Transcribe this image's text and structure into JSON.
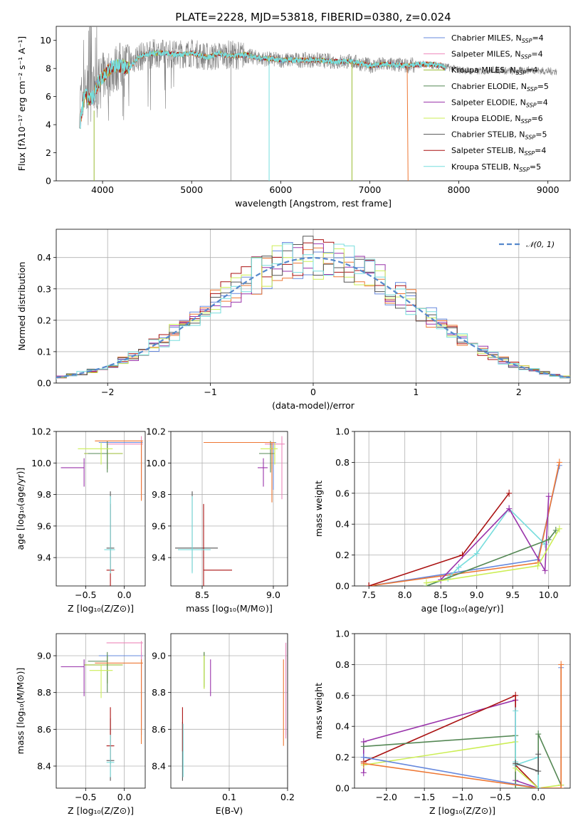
{
  "title": "PLATE=2228, MJD=53818, FIBERID=0380, z=0.024",
  "colors": {
    "Chabrier MILES": "#6688dd",
    "Salpeter MILES": "#ee88bb",
    "Kroupa MILES": "#99bb33",
    "Chabrier ELODIE": "#558855",
    "Salpeter ELODIE": "#9933aa",
    "Kroupa ELODIE": "#ccee55",
    "Chabrier STELIB": "#555555",
    "Salpeter STELIB": "#aa1111",
    "Kroupa STELIB": "#77dddd",
    "orange": "#ee7733",
    "gray_spectrum": "#808080"
  },
  "chart_data": [
    {
      "id": "spectrum",
      "type": "line",
      "xlabel": "wavelength [Angstrom, rest frame]",
      "ylabel": "Flux [fλ10⁻¹⁷ erg cm⁻² s⁻¹ A⁻¹]",
      "xlim": [
        3480,
        9250
      ],
      "ylim": [
        0,
        11
      ],
      "xticks": [
        "4000",
        "5000",
        "6000",
        "7000",
        "8000",
        "9000"
      ],
      "yticks": [
        "0",
        "2",
        "4",
        "6",
        "8",
        "10"
      ],
      "legend_position": "upper right",
      "legend": [
        {
          "name": "Chabrier MILES",
          "nssp": "4"
        },
        {
          "name": "Salpeter MILES",
          "nssp": "4"
        },
        {
          "name": "Kroupa MILES",
          "nssp": "4"
        },
        {
          "name": "Chabrier ELODIE",
          "nssp": "5"
        },
        {
          "name": "Salpeter ELODIE",
          "nssp": "4"
        },
        {
          "name": "Kroupa ELODIE",
          "nssp": "6"
        },
        {
          "name": "Chabrier STELIB",
          "nssp": "5"
        },
        {
          "name": "Salpeter STELIB",
          "nssp": "4"
        },
        {
          "name": "Kroupa STELIB",
          "nssp": "5"
        }
      ],
      "continuum": {
        "x": [
          3750,
          3800,
          3850,
          3900,
          3950,
          4000,
          4100,
          4200,
          4300,
          4400,
          4500,
          4600,
          4700,
          4800,
          4900,
          5000,
          5100,
          5200,
          5300,
          5400,
          5500,
          5600,
          5700,
          5800,
          5900,
          6000,
          6200,
          6400,
          6600,
          6800,
          7000,
          7200,
          7400,
          7600,
          7700,
          7800,
          7850
        ],
        "y": [
          4.2,
          6.2,
          5.8,
          6.0,
          7.0,
          7.4,
          8.1,
          8.2,
          8.0,
          8.8,
          9.0,
          9.1,
          9.1,
          9.0,
          9.0,
          9.1,
          8.9,
          8.8,
          9.1,
          8.9,
          8.9,
          9.0,
          8.8,
          8.7,
          8.7,
          8.6,
          8.6,
          8.6,
          8.5,
          8.5,
          8.2,
          8.3,
          8.2,
          8.3,
          8.3,
          8.2,
          8.0
        ]
      },
      "observed_spectrum": {
        "x": [
          3740,
          3800,
          3900,
          4000,
          4200,
          4400,
          4600,
          4800,
          5000,
          5200,
          5400,
          5600,
          5800,
          6000,
          6200,
          6400,
          6600,
          6800,
          7000,
          7200,
          7400,
          7600,
          7800,
          8000,
          8200,
          8400,
          8600,
          8800,
          9000,
          9100
        ],
        "y": [
          5.5,
          6.5,
          6.4,
          7.4,
          8.2,
          8.8,
          9.1,
          9.0,
          9.1,
          8.8,
          9.0,
          8.9,
          8.7,
          8.6,
          8.6,
          8.6,
          8.5,
          8.5,
          8.2,
          8.3,
          8.2,
          8.3,
          8.2,
          7.9,
          7.8,
          7.9,
          7.8,
          7.9,
          7.8,
          7.8
        ]
      }
    },
    {
      "id": "residuals",
      "type": "line",
      "xlabel": "(data-model)/error",
      "ylabel": "Normed distribution",
      "xlim": [
        -2.5,
        2.5
      ],
      "ylim": [
        0,
        0.49
      ],
      "xticks": [
        "−2",
        "−1",
        "0",
        "1",
        "2"
      ],
      "yticks": [
        "0.0",
        "0.1",
        "0.2",
        "0.3",
        "0.4"
      ],
      "legend": "𝒩(0, 1)",
      "normal_mean": 0,
      "normal_sigma": 1,
      "bin_width": 0.1
    },
    {
      "id": "age_vs_Z",
      "type": "scatter",
      "xlabel": "Z [log₁₀(Z/Z⊙)]",
      "ylabel": "age  [log₁₀(age/yr)]",
      "xlim": [
        -0.88,
        0.27
      ],
      "ylim": [
        9.22,
        10.2
      ],
      "xticks": [
        "−0.5",
        "0.0"
      ],
      "yticks": [
        "9.4",
        "9.6",
        "9.8",
        "10.0",
        "10.2"
      ],
      "points": [
        {
          "model": "Chabrier MILES",
          "x": 0.22,
          "y": 10.13,
          "xerr": [
            0.55,
            0.02
          ],
          "yerr": [
            0.3,
            0.0
          ],
          "c": "#6688dd"
        },
        {
          "model": "Salpeter MILES",
          "x": 0.22,
          "y": 10.12,
          "xerr": [
            0.45,
            0.02
          ],
          "yerr": [
            0.35,
            0.05
          ],
          "c": "#ee88bb"
        },
        {
          "model": "Kroupa MILES",
          "x": -0.22,
          "y": 10.06,
          "xerr": [
            0.3,
            0.2
          ],
          "yerr": [
            0.1,
            0.06
          ],
          "c": "#99bb33"
        },
        {
          "model": "Chabrier ELODIE",
          "x": -0.22,
          "y": 10.06,
          "xerr": [
            0.25,
            0.0
          ],
          "yerr": [
            0.12,
            0.08
          ],
          "c": "#558855"
        },
        {
          "model": "Salpeter ELODIE",
          "x": -0.52,
          "y": 9.97,
          "xerr": [
            0.3,
            0.0
          ],
          "yerr": [
            0.12,
            0.06
          ],
          "c": "#9933aa"
        },
        {
          "model": "Kroupa ELODIE",
          "x": -0.3,
          "y": 10.09,
          "xerr": [
            0.3,
            0.15
          ],
          "yerr": [
            0.1,
            0.04
          ],
          "c": "#ccee55"
        },
        {
          "model": "Chabrier STELIB",
          "x": -0.18,
          "y": 9.46,
          "xerr": [
            0.05,
            0.05
          ],
          "yerr": [
            0.15,
            0.36
          ],
          "c": "#555555"
        },
        {
          "model": "Salpeter STELIB",
          "x": -0.18,
          "y": 9.32,
          "xerr": [
            0.05,
            0.05
          ],
          "yerr": [
            0.1,
            0.42
          ],
          "c": "#aa1111"
        },
        {
          "model": "Kroupa STELIB",
          "x": -0.18,
          "y": 9.45,
          "xerr": [
            0.08,
            0.06
          ],
          "yerr": [
            0.15,
            0.34
          ],
          "c": "#77dddd"
        },
        {
          "model": "orange",
          "x": 0.22,
          "y": 10.14,
          "xerr": [
            0.6,
            0.02
          ],
          "yerr": [
            0.38,
            0.0
          ],
          "c": "#ee7733"
        }
      ]
    },
    {
      "id": "age_vs_mass",
      "type": "scatter",
      "xlabel": "mass [log₁₀(M/M⊙)]",
      "ylabel": "",
      "xlim": [
        8.28,
        9.1
      ],
      "ylim": [
        9.22,
        10.2
      ],
      "xticks": [
        "8.5",
        "9.0"
      ],
      "yticks": [
        "9.4",
        "9.6",
        "9.8",
        "10.0",
        "10.2"
      ],
      "points": [
        {
          "x": 9.0,
          "y": 10.13,
          "xerr": [
            0.3,
            0.02
          ],
          "yerr": [
            0.3,
            0.0
          ],
          "c": "#6688dd"
        },
        {
          "x": 9.06,
          "y": 10.12,
          "xerr": [
            0.12,
            0.02
          ],
          "yerr": [
            0.35,
            0.05
          ],
          "c": "#ee88bb"
        },
        {
          "x": 8.99,
          "y": 10.06,
          "xerr": [
            0.08,
            0.02
          ],
          "yerr": [
            0.1,
            0.06
          ],
          "c": "#99bb33"
        },
        {
          "x": 8.98,
          "y": 10.06,
          "xerr": [
            0.08,
            0.02
          ],
          "yerr": [
            0.12,
            0.08
          ],
          "c": "#558855"
        },
        {
          "x": 8.93,
          "y": 9.97,
          "xerr": [
            0.04,
            0.03
          ],
          "yerr": [
            0.12,
            0.06
          ],
          "c": "#9933aa"
        },
        {
          "x": 9.01,
          "y": 10.09,
          "xerr": [
            0.1,
            0.02
          ],
          "yerr": [
            0.1,
            0.04
          ],
          "c": "#ccee55"
        },
        {
          "x": 8.43,
          "y": 9.46,
          "xerr": [
            0.12,
            0.18
          ],
          "yerr": [
            0.15,
            0.36
          ],
          "c": "#555555"
        },
        {
          "x": 8.51,
          "y": 9.32,
          "xerr": [
            0.0,
            0.2
          ],
          "yerr": [
            0.1,
            0.42
          ],
          "c": "#aa1111"
        },
        {
          "x": 8.43,
          "y": 9.45,
          "xerr": [
            0.1,
            0.13
          ],
          "yerr": [
            0.15,
            0.34
          ],
          "c": "#77dddd"
        },
        {
          "x": 8.99,
          "y": 10.13,
          "xerr": [
            0.48,
            0.02
          ],
          "yerr": [
            0.38,
            0.0
          ],
          "c": "#ee7733"
        }
      ]
    },
    {
      "id": "massweight_vs_age",
      "type": "line",
      "xlabel": "age  [log₁₀(age/yr)]",
      "ylabel": "mass weight",
      "xlim": [
        7.3,
        10.3
      ],
      "ylim": [
        0,
        1.0
      ],
      "xticks": [
        "7.5",
        "8.0",
        "8.5",
        "9.0",
        "9.5",
        "10.0"
      ],
      "yticks": [
        "0.0",
        "0.2",
        "0.4",
        "0.6",
        "0.8",
        "1.0"
      ],
      "series": [
        {
          "c": "#6688dd",
          "x": [
            7.5,
            9.85,
            10.15
          ],
          "y": [
            0.0,
            0.17,
            0.78
          ]
        },
        {
          "c": "#ee7733",
          "x": [
            7.5,
            9.85,
            10.15
          ],
          "y": [
            0.0,
            0.15,
            0.8
          ]
        },
        {
          "c": "#aa1111",
          "x": [
            7.5,
            8.8,
            9.45
          ],
          "y": [
            0.0,
            0.2,
            0.6
          ]
        },
        {
          "c": "#77dddd",
          "x": [
            8.3,
            8.6,
            8.75,
            9.0,
            9.45,
            9.95
          ],
          "y": [
            0.0,
            0.05,
            0.12,
            0.21,
            0.5,
            0.27
          ]
        },
        {
          "c": "#9933aa",
          "x": [
            8.5,
            9.45,
            9.95,
            10.0
          ],
          "y": [
            0.04,
            0.5,
            0.1,
            0.58
          ]
        },
        {
          "c": "#558855",
          "x": [
            8.3,
            10.0,
            10.1
          ],
          "y": [
            0.0,
            0.3,
            0.36
          ]
        },
        {
          "c": "#ccee55",
          "x": [
            8.3,
            9.85,
            10.15
          ],
          "y": [
            0.02,
            0.13,
            0.37
          ]
        }
      ]
    },
    {
      "id": "mass_vs_Z",
      "type": "scatter",
      "xlabel": "Z [log₁₀(Z/Z⊙)]",
      "ylabel": "mass [log₁₀(M/M⊙)]",
      "xlim": [
        -0.88,
        0.27
      ],
      "ylim": [
        8.28,
        9.12
      ],
      "xticks": [
        "−0.5",
        "0.0"
      ],
      "yticks": [
        "8.4",
        "8.6",
        "8.8",
        "9.0"
      ],
      "points": [
        {
          "x": 0.22,
          "y": 9.0,
          "xerr": [
            0.55,
            0.02
          ],
          "yerr": [
            0.43,
            0.02
          ],
          "c": "#6688dd"
        },
        {
          "x": 0.22,
          "y": 9.07,
          "xerr": [
            0.45,
            0.02
          ],
          "yerr": [
            0.45,
            0.01
          ],
          "c": "#ee88bb"
        },
        {
          "x": -0.22,
          "y": 8.95,
          "xerr": [
            0.3,
            0.2
          ],
          "yerr": [
            0.1,
            0.05
          ],
          "c": "#99bb33"
        },
        {
          "x": -0.22,
          "y": 8.97,
          "xerr": [
            0.25,
            0.0
          ],
          "yerr": [
            0.17,
            0.05
          ],
          "c": "#558855"
        },
        {
          "x": -0.52,
          "y": 8.94,
          "xerr": [
            0.3,
            0.0
          ],
          "yerr": [
            0.16,
            0.04
          ],
          "c": "#9933aa"
        },
        {
          "x": -0.3,
          "y": 8.92,
          "xerr": [
            0.15,
            0.15
          ],
          "yerr": [
            0.15,
            0.03
          ],
          "c": "#ccee55"
        },
        {
          "x": -0.18,
          "y": 8.43,
          "xerr": [
            0.05,
            0.05
          ],
          "yerr": [
            0.11,
            0.23
          ],
          "c": "#555555"
        },
        {
          "x": -0.18,
          "y": 8.51,
          "xerr": [
            0.05,
            0.05
          ],
          "yerr": [
            0.1,
            0.21
          ],
          "c": "#aa1111"
        },
        {
          "x": -0.18,
          "y": 8.42,
          "xerr": [
            0.05,
            0.05
          ],
          "yerr": [
            0.08,
            0.15
          ],
          "c": "#77dddd"
        },
        {
          "x": 0.22,
          "y": 8.96,
          "xerr": [
            0.6,
            0.02
          ],
          "yerr": [
            0.44,
            0.02
          ],
          "c": "#ee7733"
        }
      ]
    },
    {
      "id": "mass_vs_ebv",
      "type": "scatter",
      "xlabel": "E(B-V)",
      "ylabel": "",
      "xlim": [
        0.0,
        0.2
      ],
      "ylim": [
        8.28,
        9.12
      ],
      "xticks": [
        "0.1",
        "0.2"
      ],
      "yticks": [
        "8.4",
        "8.6",
        "8.8",
        "9.0"
      ],
      "points": [
        {
          "x": 0.197,
          "y": 8.85,
          "yerr": [
            0.28,
            0.22
          ],
          "c": "#6688dd"
        },
        {
          "x": 0.197,
          "y": 8.85,
          "yerr": [
            0.3,
            0.22
          ],
          "c": "#ee88bb"
        },
        {
          "x": 0.057,
          "y": 8.92,
          "yerr": [
            0.1,
            0.1
          ],
          "c": "#99bb33"
        },
        {
          "x": 0.057,
          "y": 8.93,
          "yerr": [
            0.1,
            0.09
          ],
          "c": "#558855"
        },
        {
          "x": 0.068,
          "y": 8.88,
          "yerr": [
            0.1,
            0.1
          ],
          "c": "#9933aa"
        },
        {
          "x": 0.057,
          "y": 8.92,
          "yerr": [
            0.1,
            0.08
          ],
          "c": "#ccee55"
        },
        {
          "x": 0.02,
          "y": 8.5,
          "yerr": [
            0.18,
            0.14
          ],
          "c": "#555555"
        },
        {
          "x": 0.02,
          "y": 8.6,
          "yerr": [
            0.12,
            0.12
          ],
          "c": "#aa1111"
        },
        {
          "x": 0.021,
          "y": 8.48,
          "yerr": [
            0.14,
            0.15
          ],
          "c": "#77dddd"
        },
        {
          "x": 0.193,
          "y": 8.75,
          "yerr": [
            0.24,
            0.23
          ],
          "c": "#ee7733"
        }
      ]
    },
    {
      "id": "massweight_vs_Z",
      "type": "line",
      "xlabel": "Z [log₁₀(Z/Z⊙)]",
      "ylabel": "mass weight",
      "xlim": [
        -2.42,
        0.42
      ],
      "ylim": [
        0,
        1.0
      ],
      "xticks": [
        "−2.0",
        "−1.5",
        "−1.0",
        "−0.5",
        "0.0"
      ],
      "yticks": [
        "0.0",
        "0.2",
        "0.4",
        "0.6",
        "0.8",
        "1.0"
      ],
      "series": [
        {
          "c": "#9933aa",
          "x": [
            -2.3,
            -2.3,
            -0.3,
            -0.3,
            0.0
          ],
          "y": [
            0.1,
            0.3,
            0.57,
            0.05,
            0.0
          ]
        },
        {
          "c": "#aa1111",
          "x": [
            -2.3,
            -0.3,
            -0.3,
            0.0
          ],
          "y": [
            0.17,
            0.6,
            0.15,
            0.0
          ]
        },
        {
          "c": "#558855",
          "x": [
            -2.3,
            -0.3,
            -0.3,
            0.0,
            0.0,
            0.3
          ],
          "y": [
            0.27,
            0.34,
            0.0,
            0.0,
            0.35,
            0.02
          ]
        },
        {
          "c": "#ccee55",
          "x": [
            -2.3,
            -0.3,
            -0.3,
            0.0,
            0.3
          ],
          "y": [
            0.15,
            0.3,
            0.13,
            0.0,
            0.02
          ]
        },
        {
          "c": "#6688dd",
          "x": [
            -2.3,
            0.0,
            0.3,
            0.3
          ],
          "y": [
            0.2,
            0.0,
            0.0,
            0.78
          ]
        },
        {
          "c": "#ee7733",
          "x": [
            -2.3,
            0.0,
            0.3,
            0.3
          ],
          "y": [
            0.16,
            0.0,
            0.0,
            0.8
          ]
        },
        {
          "c": "#77dddd",
          "x": [
            -0.3,
            -0.3,
            -0.3,
            0.0,
            0.0
          ],
          "y": [
            0.5,
            0.17,
            0.15,
            0.2,
            0.0
          ]
        },
        {
          "c": "#555555",
          "x": [
            -0.3,
            0.0,
            0.0
          ],
          "y": [
            0.16,
            0.11,
            0.22
          ]
        }
      ]
    }
  ]
}
